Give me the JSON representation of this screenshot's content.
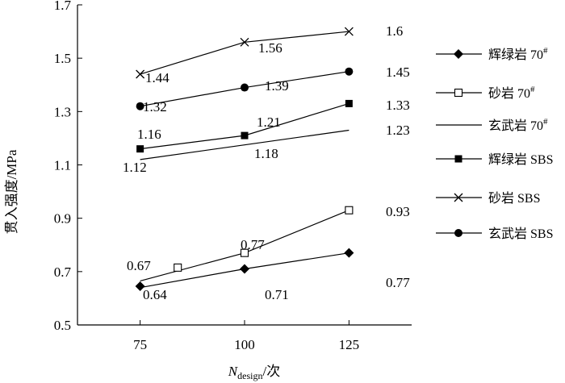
{
  "chart_data": {
    "type": "line",
    "xlabel": {
      "symbol": "N",
      "subscript": "design",
      "unit": "/次"
    },
    "ylabel": "贯入强度/MPa",
    "xlim": [
      60,
      140
    ],
    "ylim": [
      0.5,
      1.7
    ],
    "x_ticks": [
      "75",
      "100",
      "125"
    ],
    "y_ticks": [
      "0.5",
      "0.7",
      "0.9",
      "1.1",
      "1.3",
      "1.5",
      "1.7"
    ],
    "grid": false,
    "legend_position": "right",
    "series": [
      {
        "name": "辉绿岩 70",
        "superscript": "#",
        "marker": "diamond",
        "line_points": [
          [
            75,
            0.64
          ],
          [
            100,
            0.71
          ],
          [
            125,
            0.77
          ]
        ],
        "markers": [
          [
            75,
            0.645
          ],
          [
            100,
            0.71
          ],
          [
            125,
            0.77
          ]
        ],
        "labels": [
          "0.64",
          "0.71",
          "0.77"
        ]
      },
      {
        "name": "砂岩 70",
        "superscript": "#",
        "marker": "open-square",
        "line_points": [
          [
            75,
            0.665
          ],
          [
            100,
            0.77
          ],
          [
            125,
            0.93
          ]
        ],
        "markers": [
          [
            84,
            0.715
          ],
          [
            100,
            0.77
          ],
          [
            125,
            0.93
          ]
        ],
        "labels": [
          "0.67",
          "0.77",
          "0.93"
        ]
      },
      {
        "name": "玄武岩 70",
        "superscript": "#",
        "marker": "none",
        "line_points": [
          [
            75,
            1.12
          ],
          [
            100,
            1.175
          ],
          [
            125,
            1.23
          ]
        ],
        "markers": [],
        "labels": [
          "1.12",
          "1.18",
          "1.23"
        ]
      },
      {
        "name": "辉绿岩 SBS",
        "superscript": "",
        "marker": "square",
        "line_points": [
          [
            75,
            1.16
          ],
          [
            100,
            1.21
          ],
          [
            125,
            1.33
          ]
        ],
        "markers": [
          [
            75,
            1.16
          ],
          [
            100,
            1.21
          ],
          [
            125,
            1.33
          ]
        ],
        "labels": [
          "1.16",
          "1.21",
          "1.33"
        ]
      },
      {
        "name": "砂岩 SBS",
        "superscript": "",
        "marker": "x",
        "line_points": [
          [
            75,
            1.44
          ],
          [
            100,
            1.56
          ],
          [
            125,
            1.6
          ]
        ],
        "markers": [
          [
            75,
            1.44
          ],
          [
            100,
            1.56
          ],
          [
            125,
            1.6
          ]
        ],
        "labels": [
          "1.44",
          "1.56",
          "1.6"
        ]
      },
      {
        "name": "玄武岩 SBS",
        "superscript": "",
        "marker": "circle",
        "line_points": [
          [
            75,
            1.32
          ],
          [
            100,
            1.39
          ],
          [
            125,
            1.45
          ]
        ],
        "markers": [
          [
            75,
            1.32
          ],
          [
            100,
            1.39
          ],
          [
            125,
            1.45
          ]
        ],
        "labels": [
          "1.32",
          "1.39",
          "1.45"
        ]
      }
    ]
  }
}
